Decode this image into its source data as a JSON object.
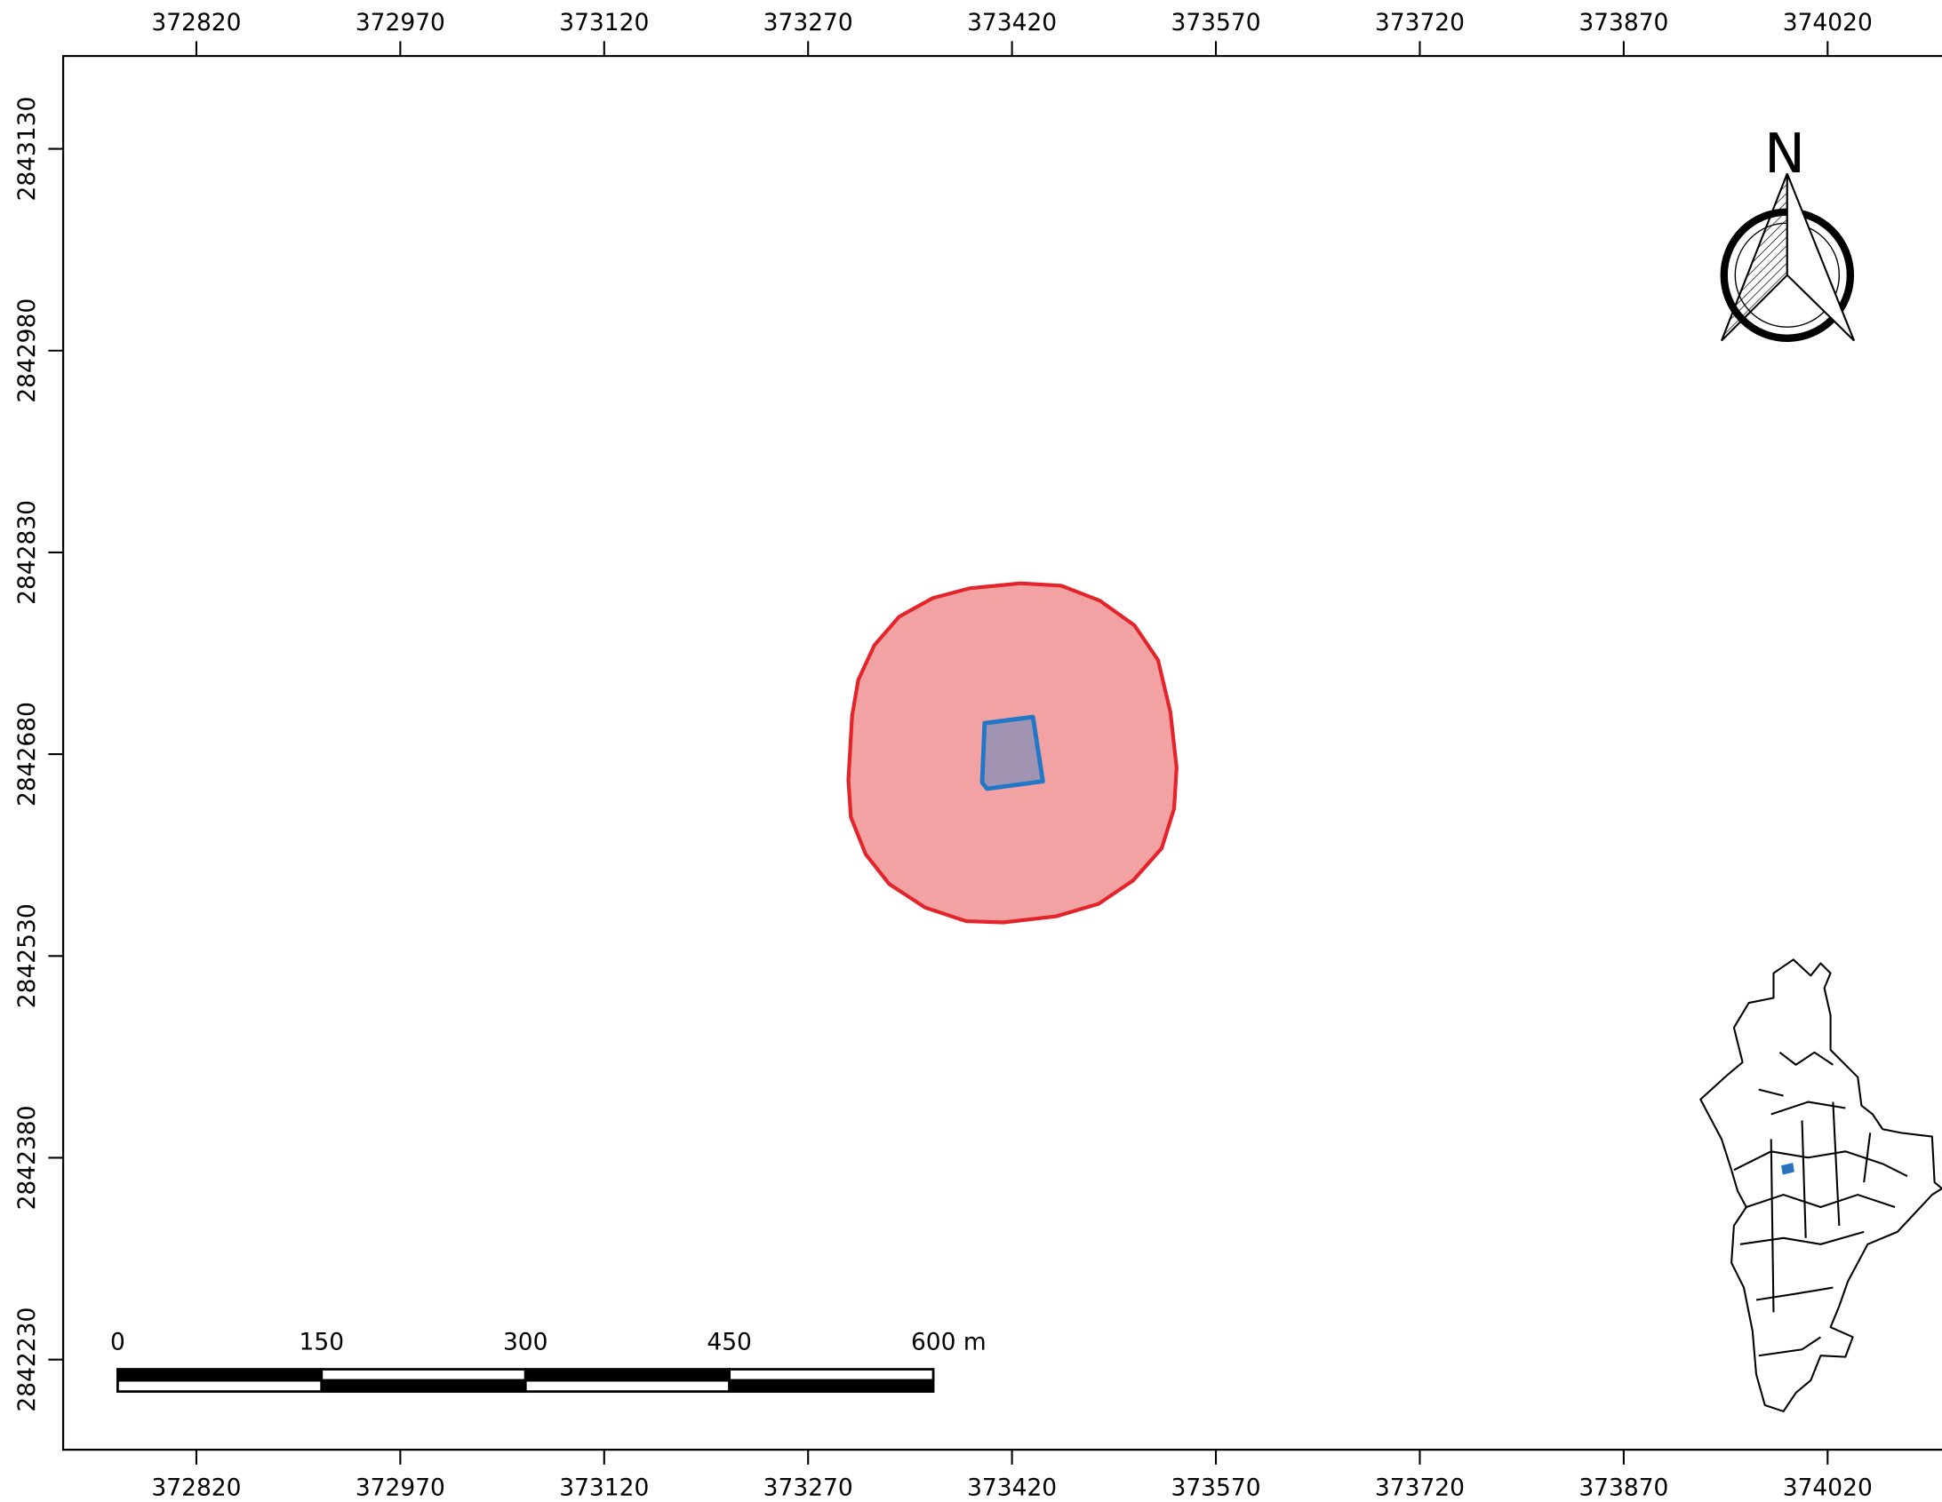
{
  "map": {
    "xlim": [
      372722,
      374116
    ],
    "ylim": [
      2842163,
      2843199
    ],
    "xticks": [
      372820,
      372970,
      373120,
      373270,
      373420,
      373570,
      373720,
      373870,
      374020
    ],
    "yticks": [
      2843130,
      2842980,
      2842830,
      2842680,
      2842530,
      2842380,
      2842230
    ],
    "north_label": "N",
    "scale_bar": {
      "ticks": [
        0,
        150,
        300,
        450,
        {
          "value": 600,
          "label": "600 m"
        }
      ]
    }
  }
}
